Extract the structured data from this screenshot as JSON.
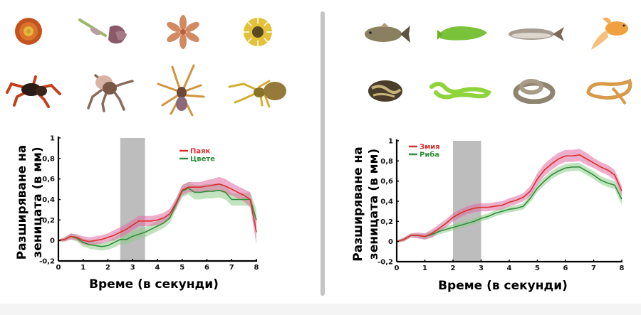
{
  "colors": {
    "red_series": "#d9302c",
    "red_band": "#e06aa0",
    "green_series": "#2f8f3a",
    "green_band": "#8fcc8a",
    "highlight": "#bdbdbd",
    "divider": "#c4c4c4"
  },
  "left": {
    "stimuli_top": [
      {
        "name": "marigold-flower",
        "kind": "flower"
      },
      {
        "name": "iris-flower",
        "kind": "flower"
      },
      {
        "name": "lily-flower",
        "kind": "flower"
      },
      {
        "name": "sunflower",
        "kind": "flower"
      }
    ],
    "stimuli_bottom": [
      {
        "name": "red-knee-tarantula",
        "kind": "spider"
      },
      {
        "name": "hairy-tarantula",
        "kind": "spider"
      },
      {
        "name": "long-leg-spider",
        "kind": "spider"
      },
      {
        "name": "crab-spider",
        "kind": "spider"
      }
    ]
  },
  "right": {
    "stimuli_top": [
      {
        "name": "carp-fish",
        "kind": "fish"
      },
      {
        "name": "green-wrasse-fish",
        "kind": "fish"
      },
      {
        "name": "silver-fish",
        "kind": "fish"
      },
      {
        "name": "goldfish",
        "kind": "fish"
      }
    ],
    "stimuli_bottom": [
      {
        "name": "ball-python-snake",
        "kind": "snake"
      },
      {
        "name": "green-viper-snake",
        "kind": "snake"
      },
      {
        "name": "coiled-grey-snake",
        "kind": "snake"
      },
      {
        "name": "corn-snake",
        "kind": "snake"
      }
    ]
  },
  "chart_data": [
    {
      "type": "line",
      "title": "",
      "xlabel": "Време (в секунди)",
      "ylabel_line1": "Разширяване на",
      "ylabel_line2": "зеницата (в мм)",
      "xlim": [
        0,
        8
      ],
      "ylim": [
        -0.2,
        1
      ],
      "x_ticks": [
        "0",
        "1",
        "2",
        "3",
        "4",
        "5",
        "6",
        "7",
        "8"
      ],
      "y_ticks": [
        "-0,2",
        "0",
        "0,2",
        "0,4",
        "0,6",
        "0,8",
        "1"
      ],
      "y_tick_values": [
        -0.2,
        0,
        0.2,
        0.4,
        0.6,
        0.8,
        1
      ],
      "highlight_interval": [
        2.5,
        3.5
      ],
      "legend": {
        "position": "top-right-of-center",
        "entries": [
          "Паяк",
          "Цвете"
        ]
      },
      "grid": false,
      "x": [
        0,
        0.25,
        0.5,
        0.75,
        1,
        1.25,
        1.5,
        1.75,
        2,
        2.25,
        2.5,
        2.75,
        3,
        3.25,
        3.5,
        3.75,
        4,
        4.25,
        4.5,
        4.75,
        5,
        5.25,
        5.5,
        5.75,
        6,
        6.25,
        6.5,
        6.75,
        7,
        7.25,
        7.5,
        7.75,
        8
      ],
      "series": [
        {
          "name": "Паяк",
          "color": "red",
          "values": [
            0,
            0.01,
            0.04,
            0.03,
            0.0,
            -0.01,
            0.0,
            0.01,
            0.03,
            0.05,
            0.08,
            0.11,
            0.15,
            0.19,
            0.19,
            0.19,
            0.2,
            0.22,
            0.26,
            0.36,
            0.49,
            0.52,
            0.52,
            0.52,
            0.53,
            0.54,
            0.55,
            0.53,
            0.5,
            0.47,
            0.44,
            0.4,
            0.08
          ],
          "error": [
            0.01,
            0.02,
            0.03,
            0.03,
            0.04,
            0.04,
            0.04,
            0.04,
            0.04,
            0.05,
            0.05,
            0.05,
            0.05,
            0.05,
            0.05,
            0.05,
            0.05,
            0.05,
            0.05,
            0.05,
            0.05,
            0.05,
            0.05,
            0.05,
            0.06,
            0.06,
            0.07,
            0.07,
            0.06,
            0.06,
            0.06,
            0.07,
            0.12
          ]
        },
        {
          "name": "Цвете",
          "color": "green",
          "values": [
            0,
            0.01,
            0.04,
            0.02,
            -0.02,
            -0.04,
            -0.05,
            -0.06,
            -0.05,
            -0.02,
            0.01,
            0.01,
            0.04,
            0.06,
            0.08,
            0.11,
            0.14,
            0.17,
            0.22,
            0.35,
            0.48,
            0.51,
            0.47,
            0.47,
            0.48,
            0.48,
            0.49,
            0.47,
            0.4,
            0.4,
            0.4,
            0.4,
            0.2
          ],
          "error": [
            0.01,
            0.02,
            0.03,
            0.03,
            0.04,
            0.04,
            0.04,
            0.04,
            0.04,
            0.05,
            0.05,
            0.05,
            0.05,
            0.05,
            0.05,
            0.05,
            0.05,
            0.05,
            0.05,
            0.05,
            0.06,
            0.06,
            0.07,
            0.07,
            0.07,
            0.07,
            0.07,
            0.07,
            0.06,
            0.06,
            0.06,
            0.07,
            0.1
          ]
        }
      ]
    },
    {
      "type": "line",
      "title": "",
      "xlabel": "Време (в секунди)",
      "ylabel_line1": "Разширяване на",
      "ylabel_line2": "зеницата (в мм)",
      "xlim": [
        0,
        8
      ],
      "ylim": [
        -0.2,
        1
      ],
      "x_ticks": [
        "0",
        "1",
        "2",
        "3",
        "4",
        "5",
        "6",
        "7",
        "8"
      ],
      "y_ticks": [
        "-0,2",
        "0",
        "0,2",
        "0,4",
        "0,6",
        "0,8",
        "1"
      ],
      "y_tick_values": [
        -0.2,
        0,
        0.2,
        0.4,
        0.6,
        0.8,
        1
      ],
      "highlight_interval": [
        2,
        3
      ],
      "legend": {
        "position": "top-left",
        "entries": [
          "Змия",
          "Риба"
        ]
      },
      "grid": false,
      "x": [
        0,
        0.25,
        0.5,
        0.75,
        1,
        1.25,
        1.5,
        1.75,
        2,
        2.25,
        2.5,
        2.75,
        3,
        3.25,
        3.5,
        3.75,
        4,
        4.25,
        4.5,
        4.75,
        5,
        5.25,
        5.5,
        5.75,
        6,
        6.25,
        6.5,
        6.75,
        7,
        7.25,
        7.5,
        7.75,
        8
      ],
      "series": [
        {
          "name": "Змия",
          "color": "red",
          "values": [
            0,
            0.02,
            0.06,
            0.06,
            0.05,
            0.08,
            0.13,
            0.18,
            0.24,
            0.28,
            0.31,
            0.33,
            0.34,
            0.34,
            0.35,
            0.36,
            0.39,
            0.41,
            0.44,
            0.5,
            0.62,
            0.71,
            0.77,
            0.82,
            0.85,
            0.85,
            0.86,
            0.82,
            0.78,
            0.74,
            0.71,
            0.66,
            0.5
          ],
          "error": [
            0.01,
            0.02,
            0.02,
            0.03,
            0.03,
            0.04,
            0.04,
            0.04,
            0.04,
            0.04,
            0.04,
            0.04,
            0.04,
            0.04,
            0.04,
            0.04,
            0.04,
            0.04,
            0.04,
            0.05,
            0.06,
            0.06,
            0.06,
            0.06,
            0.06,
            0.06,
            0.06,
            0.06,
            0.05,
            0.05,
            0.05,
            0.05,
            0.05
          ]
        },
        {
          "name": "Риба",
          "color": "green",
          "values": [
            0,
            0.02,
            0.06,
            0.06,
            0.05,
            0.07,
            0.1,
            0.12,
            0.14,
            0.16,
            0.18,
            0.2,
            0.23,
            0.25,
            0.28,
            0.3,
            0.32,
            0.33,
            0.35,
            0.43,
            0.53,
            0.6,
            0.66,
            0.7,
            0.73,
            0.74,
            0.74,
            0.7,
            0.66,
            0.61,
            0.58,
            0.56,
            0.42
          ],
          "error": [
            0.01,
            0.02,
            0.02,
            0.02,
            0.03,
            0.03,
            0.03,
            0.03,
            0.03,
            0.03,
            0.03,
            0.03,
            0.03,
            0.03,
            0.03,
            0.03,
            0.03,
            0.03,
            0.03,
            0.04,
            0.04,
            0.04,
            0.04,
            0.04,
            0.04,
            0.04,
            0.04,
            0.04,
            0.04,
            0.04,
            0.04,
            0.04,
            0.06
          ]
        }
      ]
    }
  ]
}
